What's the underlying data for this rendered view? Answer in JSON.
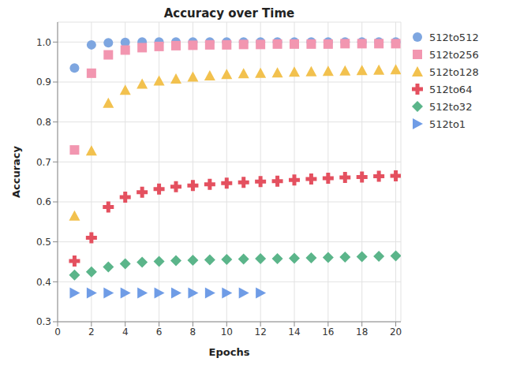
{
  "chart_data": {
    "type": "scatter",
    "title": "Accuracy over Time",
    "x_label": "Epochs",
    "y_label": "Accuracy",
    "x": [
      1,
      2,
      3,
      4,
      5,
      6,
      7,
      8,
      9,
      10,
      11,
      12,
      13,
      14,
      15,
      16,
      17,
      18,
      19,
      20
    ],
    "series": [
      {
        "name": "512to512",
        "color": "#7ea6e0",
        "marker": "circle",
        "values": [
          0.935,
          0.993,
          0.998,
          0.999,
          1.0,
          1.0,
          1.0,
          1.0,
          1.0,
          1.0,
          1.0,
          1.0,
          1.0,
          1.0,
          1.0,
          1.0,
          1.0,
          1.0,
          1.0,
          1.0
        ]
      },
      {
        "name": "512to256",
        "color": "#f296b0",
        "marker": "square",
        "values": [
          0.73,
          0.922,
          0.968,
          0.98,
          0.986,
          0.989,
          0.991,
          0.992,
          0.993,
          0.993,
          0.994,
          0.994,
          0.995,
          0.995,
          0.995,
          0.995,
          0.996,
          0.996,
          0.996,
          0.996
        ]
      },
      {
        "name": "512to128",
        "color": "#f2c14e",
        "marker": "triangle-up",
        "values": [
          0.565,
          0.728,
          0.847,
          0.88,
          0.895,
          0.903,
          0.908,
          0.913,
          0.916,
          0.919,
          0.921,
          0.922,
          0.923,
          0.925,
          0.926,
          0.927,
          0.928,
          0.929,
          0.93,
          0.931
        ]
      },
      {
        "name": "512to64",
        "color": "#e4505f",
        "marker": "cross",
        "values": [
          0.452,
          0.51,
          0.587,
          0.612,
          0.624,
          0.632,
          0.638,
          0.641,
          0.644,
          0.647,
          0.649,
          0.651,
          0.652,
          0.655,
          0.657,
          0.659,
          0.661,
          0.662,
          0.664,
          0.665
        ]
      },
      {
        "name": "512to32",
        "color": "#5bb58a",
        "marker": "diamond",
        "values": [
          0.417,
          0.425,
          0.437,
          0.445,
          0.449,
          0.451,
          0.453,
          0.454,
          0.455,
          0.456,
          0.457,
          0.458,
          0.458,
          0.459,
          0.46,
          0.461,
          0.462,
          0.463,
          0.464,
          0.465
        ]
      },
      {
        "name": "512to1",
        "color": "#6f9ce6",
        "marker": "triangle-right",
        "values": [
          0.372,
          0.372,
          0.372,
          0.372,
          0.372,
          0.372,
          0.372,
          0.372,
          0.372,
          0.372,
          0.372,
          0.372,
          null,
          null,
          null,
          null,
          null,
          null,
          null,
          null
        ]
      }
    ],
    "xlim": [
      0,
      20.3
    ],
    "xticks": [
      0,
      2,
      4,
      6,
      8,
      10,
      12,
      14,
      16,
      18,
      20
    ],
    "ylim": [
      0.3,
      1.05
    ],
    "yticks": [
      0.3,
      0.4,
      0.5,
      0.6,
      0.7,
      0.8,
      0.9,
      {
        "value": 1.0,
        "label": "1.0"
      }
    ],
    "grid": true,
    "legend": "right"
  }
}
